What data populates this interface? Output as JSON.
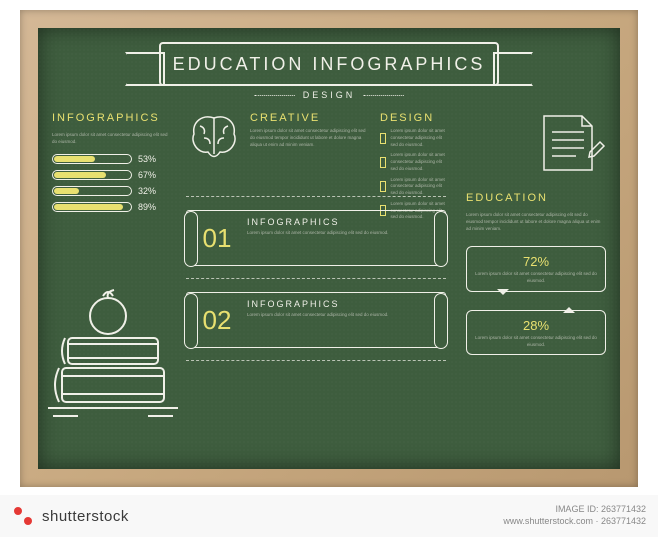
{
  "banner": {
    "title": "EDUCATION INFOGRAPHICS",
    "subtitle": "DESIGN"
  },
  "colors": {
    "board": "#3e5d3e",
    "chalk_white": "#f0f0e8",
    "chalk_yellow": "#e8e070",
    "frame_wood": "#c8a980"
  },
  "left": {
    "heading": "INFOGRAPHICS",
    "bars": [
      {
        "value": 53,
        "label": "53%"
      },
      {
        "value": 67,
        "label": "67%"
      },
      {
        "value": 32,
        "label": "32%"
      },
      {
        "value": 89,
        "label": "89%"
      }
    ]
  },
  "mid": {
    "creative_heading": "CREATIVE",
    "design_heading": "DESIGN",
    "checklist_count": 4,
    "scrolls": [
      {
        "num": "01",
        "title": "INFOGRAPHICS"
      },
      {
        "num": "02",
        "title": "INFOGRAPHICS"
      }
    ]
  },
  "right": {
    "education_heading": "EDUCATION",
    "callouts": [
      {
        "value": 72,
        "label": "72%"
      },
      {
        "value": 28,
        "label": "28%"
      }
    ]
  },
  "lorem_short": "Lorem ipsum dolor sit amet consectetur adipiscing elit sed do eiusmod tempor incididunt ut labore et dolore magna aliqua ut enim ad minim veniam.",
  "lorem_tiny": "Lorem ipsum dolor sit amet consectetur adipiscing elit sed do eiusmod.",
  "watermark": {
    "brand": "shutterstock",
    "image_id": "IMAGE ID: 263771432",
    "site": "www.shutterstock.com · 263771432"
  }
}
